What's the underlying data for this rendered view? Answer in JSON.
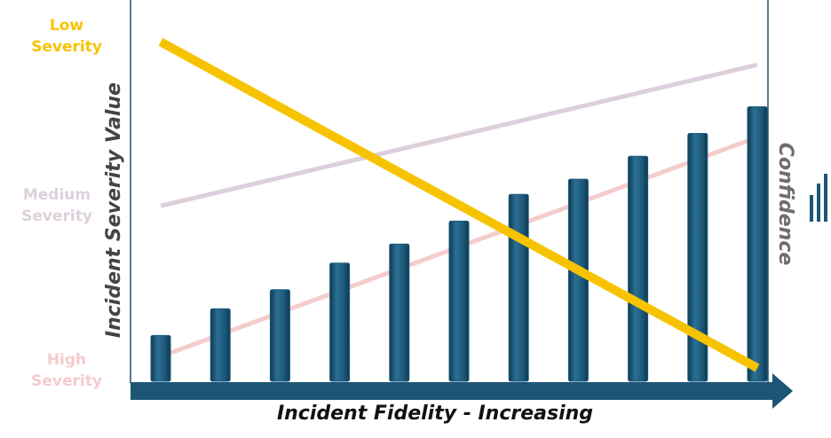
{
  "chart_data": {
    "type": "bar",
    "x_label": "Incident Fidelity - Increasing",
    "y_label": "Incident Severity Value",
    "y2_label": "Confidence",
    "categories": [
      null,
      null,
      null,
      null,
      null,
      null,
      null,
      null,
      null,
      null,
      null
    ],
    "ylim": [
      0,
      100
    ],
    "series": [
      {
        "type": "line",
        "name": "Medium Severity",
        "color": "#ddd0dc",
        "x": [
          0,
          10
        ],
        "values": [
          46,
          83
        ]
      },
      {
        "type": "line",
        "name": "High Severity",
        "color": "#f4cccb",
        "x": [
          0,
          10
        ],
        "values": [
          6.5,
          64
        ]
      },
      {
        "type": "bar",
        "color": "#1d5a7c",
        "values": [
          12,
          19,
          24,
          31,
          36,
          42,
          49,
          53,
          59,
          65,
          72
        ]
      },
      {
        "type": "line",
        "name": "Low Severity",
        "color": "#f7c300",
        "x": [
          0,
          10
        ],
        "values": [
          89,
          3.5
        ]
      }
    ]
  }
}
